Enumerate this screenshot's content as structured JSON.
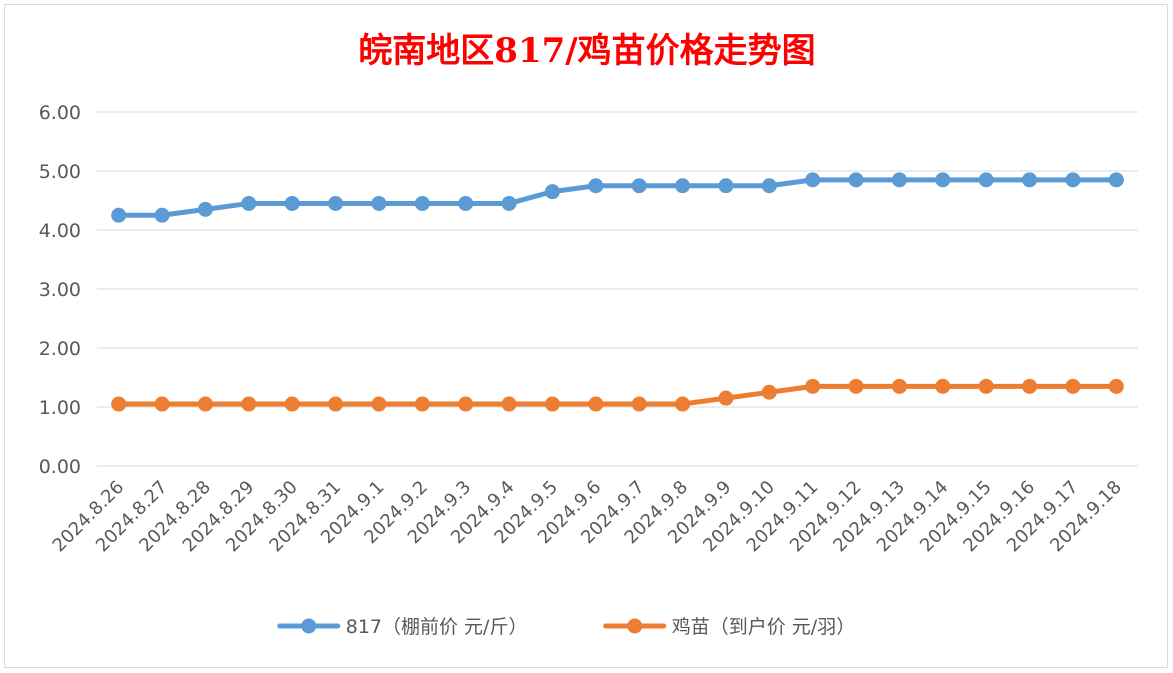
{
  "chart_data": {
    "type": "line",
    "title": "皖南地区817/鸡苗价格走势图",
    "categories": [
      "2024.8.26",
      "2024.8.27",
      "2024.8.28",
      "2024.8.29",
      "2024.8.30",
      "2024.8.31",
      "2024.9.1",
      "2024.9.2",
      "2024.9.3",
      "2024.9.4",
      "2024.9.5",
      "2024.9.6",
      "2024.9.7",
      "2024.9.8",
      "2024.9.9",
      "2024.9.10",
      "2024.9.11",
      "2024.9.12",
      "2024.9.13",
      "2024.9.14",
      "2024.9.15",
      "2024.9.16",
      "2024.9.17",
      "2024.9.18"
    ],
    "series": [
      {
        "name": "817（棚前价 元/斤）",
        "color": "#5b9bd5",
        "values": [
          4.25,
          4.25,
          4.35,
          4.45,
          4.45,
          4.45,
          4.45,
          4.45,
          4.45,
          4.45,
          4.65,
          4.75,
          4.75,
          4.75,
          4.75,
          4.75,
          4.85,
          4.85,
          4.85,
          4.85,
          4.85,
          4.85,
          4.85,
          4.85
        ]
      },
      {
        "name": "鸡苗（到户价 元/羽）",
        "color": "#ed7d31",
        "values": [
          1.05,
          1.05,
          1.05,
          1.05,
          1.05,
          1.05,
          1.05,
          1.05,
          1.05,
          1.05,
          1.05,
          1.05,
          1.05,
          1.05,
          1.15,
          1.25,
          1.35,
          1.35,
          1.35,
          1.35,
          1.35,
          1.35,
          1.35,
          1.35
        ]
      }
    ],
    "ylim": [
      0,
      6
    ],
    "yticks": [
      "0.00",
      "1.00",
      "2.00",
      "3.00",
      "4.00",
      "5.00",
      "6.00"
    ],
    "grid": true,
    "legend": "bottom"
  }
}
